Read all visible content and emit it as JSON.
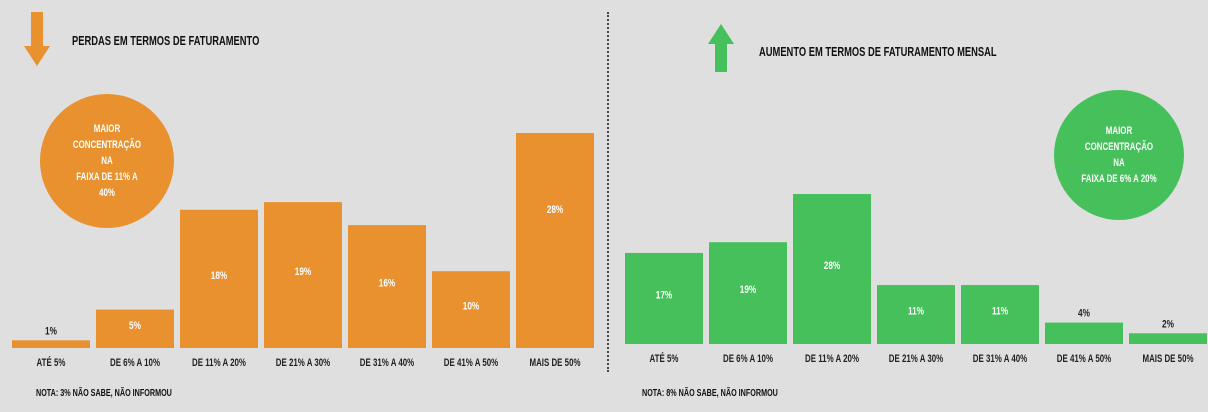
{
  "left": {
    "title": "PERDAS EM TERMOS DE FATURAMENTO",
    "bubble": "MAIOR\nCONCENTRAÇÃO NA\nFAIXA DE 11% A 40%",
    "note": "NOTA: 3% NÃO SABE, NÃO INFORMOU",
    "icon": "arrow-down-icon"
  },
  "right": {
    "title": "AUMENTO EM TERMOS DE FATURAMENTO MENSAL",
    "bubble": "MAIOR\nCONCENTRAÇÃO NA\nFAIXA DE 6% A 20%",
    "note": "NOTA: 8% NÃO SABE, NÃO INFORMOU",
    "icon": "arrow-up-icon"
  },
  "colors": {
    "orange": "#e8912e",
    "green": "#45c05a"
  },
  "chart_data": [
    {
      "type": "bar",
      "title": "PERDAS EM TERMOS DE FATURAMENTO",
      "categories": [
        "ATÉ 5%",
        "DE 6% A 10%",
        "DE 11% A 20%",
        "DE 21% A 30%",
        "DE 31% A 40%",
        "DE 41% A 50%",
        "MAIS DE 50%"
      ],
      "values": [
        1,
        5,
        18,
        19,
        16,
        10,
        28
      ],
      "labels": [
        "1%",
        "5%",
        "18%",
        "19%",
        "16%",
        "10%",
        "28%"
      ],
      "ylim": [
        0,
        28
      ],
      "color": "#e8912e"
    },
    {
      "type": "bar",
      "title": "AUMENTO EM TERMOS DE FATURAMENTO MENSAL",
      "categories": [
        "ATÉ 5%",
        "DE 6% A 10%",
        "DE 11% A 20%",
        "DE 21% A 30%",
        "DE 31% A 40%",
        "DE 41% A 50%",
        "MAIS DE 50%"
      ],
      "values": [
        17,
        19,
        28,
        11,
        11,
        4,
        2
      ],
      "labels": [
        "17%",
        "19%",
        "28%",
        "11%",
        "11%",
        "4%",
        "2%"
      ],
      "ylim": [
        0,
        28
      ],
      "color": "#45c05a"
    }
  ]
}
